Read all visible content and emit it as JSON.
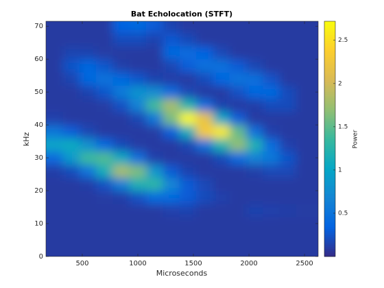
{
  "chart_data": {
    "type": "heatmap",
    "title": "Bat Echolocation (STFT)",
    "xlabel": "Microseconds",
    "ylabel": "kHz",
    "colorbar_label": "Power",
    "x": [
      250,
      400,
      550,
      700,
      850,
      1000,
      1150,
      1300,
      1450,
      1600,
      1750,
      1900,
      2050,
      2200,
      2350,
      2500
    ],
    "y": [
      2,
      6,
      10,
      14,
      18,
      22,
      26,
      30,
      34,
      38,
      42,
      46,
      50,
      54,
      58,
      62,
      66,
      70
    ],
    "z": [
      [
        0.1,
        0.1,
        0.1,
        0.1,
        0.1,
        0.1,
        0.12,
        0.42,
        1.0,
        0.54,
        0.14,
        0.1,
        0.1,
        0.1,
        0.1,
        0.1,
        0.1,
        0.1
      ],
      [
        0.1,
        0.1,
        0.1,
        0.1,
        0.1,
        0.1,
        0.2,
        0.88,
        1.07,
        0.31,
        0.1,
        0.1,
        0.1,
        0.16,
        0.25,
        0.16,
        0.1,
        0.1
      ],
      [
        0.1,
        0.1,
        0.1,
        0.1,
        0.1,
        0.12,
        0.5,
        1.37,
        0.79,
        0.17,
        0.1,
        0.1,
        0.15,
        0.38,
        0.38,
        0.15,
        0.1,
        0.1
      ],
      [
        0.1,
        0.1,
        0.1,
        0.1,
        0.11,
        0.23,
        1.14,
        1.45,
        0.4,
        0.1,
        0.1,
        0.11,
        0.26,
        0.5,
        0.26,
        0.11,
        0.1,
        0.1
      ],
      [
        0.1,
        0.1,
        0.1,
        0.1,
        0.12,
        0.61,
        1.8,
        1.06,
        0.19,
        0.1,
        0.1,
        0.23,
        0.58,
        0.4,
        0.13,
        0.1,
        0.2,
        0.35
      ],
      [
        0.1,
        0.1,
        0.1,
        0.1,
        0.23,
        1.17,
        1.62,
        0.46,
        0.11,
        0.1,
        0.17,
        0.65,
        0.82,
        0.26,
        0.1,
        0.1,
        0.2,
        0.4
      ],
      [
        0.1,
        0.1,
        0.1,
        0.1,
        0.41,
        1.29,
        0.86,
        0.14,
        0.1,
        0.11,
        0.54,
        1.4,
        0.74,
        0.15,
        0.1,
        0.1,
        0.15,
        0.3
      ],
      [
        0.1,
        0.1,
        0.1,
        0.14,
        0.41,
        0.69,
        0.29,
        0.1,
        0.1,
        0.32,
        1.6,
        1.8,
        0.43,
        0.12,
        0.17,
        0.4,
        0.28,
        0.15
      ],
      [
        0.1,
        0.1,
        0.1,
        0.15,
        0.3,
        0.3,
        0.15,
        0.1,
        0.17,
        1.12,
        2.7,
        1.22,
        0.18,
        0.1,
        0.31,
        0.43,
        0.19,
        0.1
      ],
      [
        0.1,
        0.1,
        0.1,
        0.1,
        0.2,
        0.18,
        0.1,
        0.1,
        0.49,
        2.3,
        2.2,
        0.45,
        0.1,
        0.2,
        0.48,
        0.34,
        0.1,
        0.1
      ],
      [
        0.1,
        0.1,
        0.1,
        0.1,
        0.14,
        0.1,
        0.1,
        0.19,
        1.22,
        2.6,
        1.03,
        0.15,
        0.1,
        0.37,
        0.48,
        0.18,
        0.1,
        0.1
      ],
      [
        0.1,
        0.1,
        0.1,
        0.1,
        0.1,
        0.1,
        0.1,
        0.41,
        1.7,
        1.53,
        0.31,
        0.1,
        0.23,
        0.5,
        0.3,
        0.1,
        0.1,
        0.1
      ],
      [
        0.1,
        0.1,
        0.1,
        0.15,
        0.1,
        0.1,
        0.13,
        0.64,
        1.2,
        0.47,
        0.1,
        0.12,
        0.39,
        0.47,
        0.17,
        0.1,
        0.1,
        0.1
      ],
      [
        0.1,
        0.1,
        0.1,
        0.14,
        0.1,
        0.1,
        0.18,
        0.55,
        0.44,
        0.14,
        0.1,
        0.2,
        0.4,
        0.24,
        0.1,
        0.1,
        0.1,
        0.1
      ],
      [
        0.1,
        0.1,
        0.1,
        0.12,
        0.1,
        0.1,
        0.18,
        0.25,
        0.14,
        0.1,
        0.1,
        0.2,
        0.2,
        0.1,
        0.1,
        0.1,
        0.1,
        0.1
      ],
      [
        0.1,
        0.1,
        0.1,
        0.11,
        0.1,
        0.1,
        0.1,
        0.1,
        0.1,
        0.1,
        0.1,
        0.1,
        0.1,
        0.1,
        0.1,
        0.1,
        0.1,
        0.1
      ]
    ],
    "xlim": [
      173,
      2623
    ],
    "ylim": [
      0,
      71.5
    ],
    "xticks": [
      500,
      1000,
      1500,
      2000,
      2500
    ],
    "yticks": [
      0,
      10,
      20,
      30,
      40,
      50,
      60,
      70
    ],
    "clim": [
      0,
      2.72
    ],
    "cticks": [
      0.5,
      1,
      1.5,
      2,
      2.5
    ],
    "colormap": [
      "#352a87",
      "#0363e1",
      "#1485d4",
      "#06a7c6",
      "#38b99e",
      "#92bf73",
      "#d9ba56",
      "#fcce2e",
      "#f9fb0e"
    ]
  }
}
